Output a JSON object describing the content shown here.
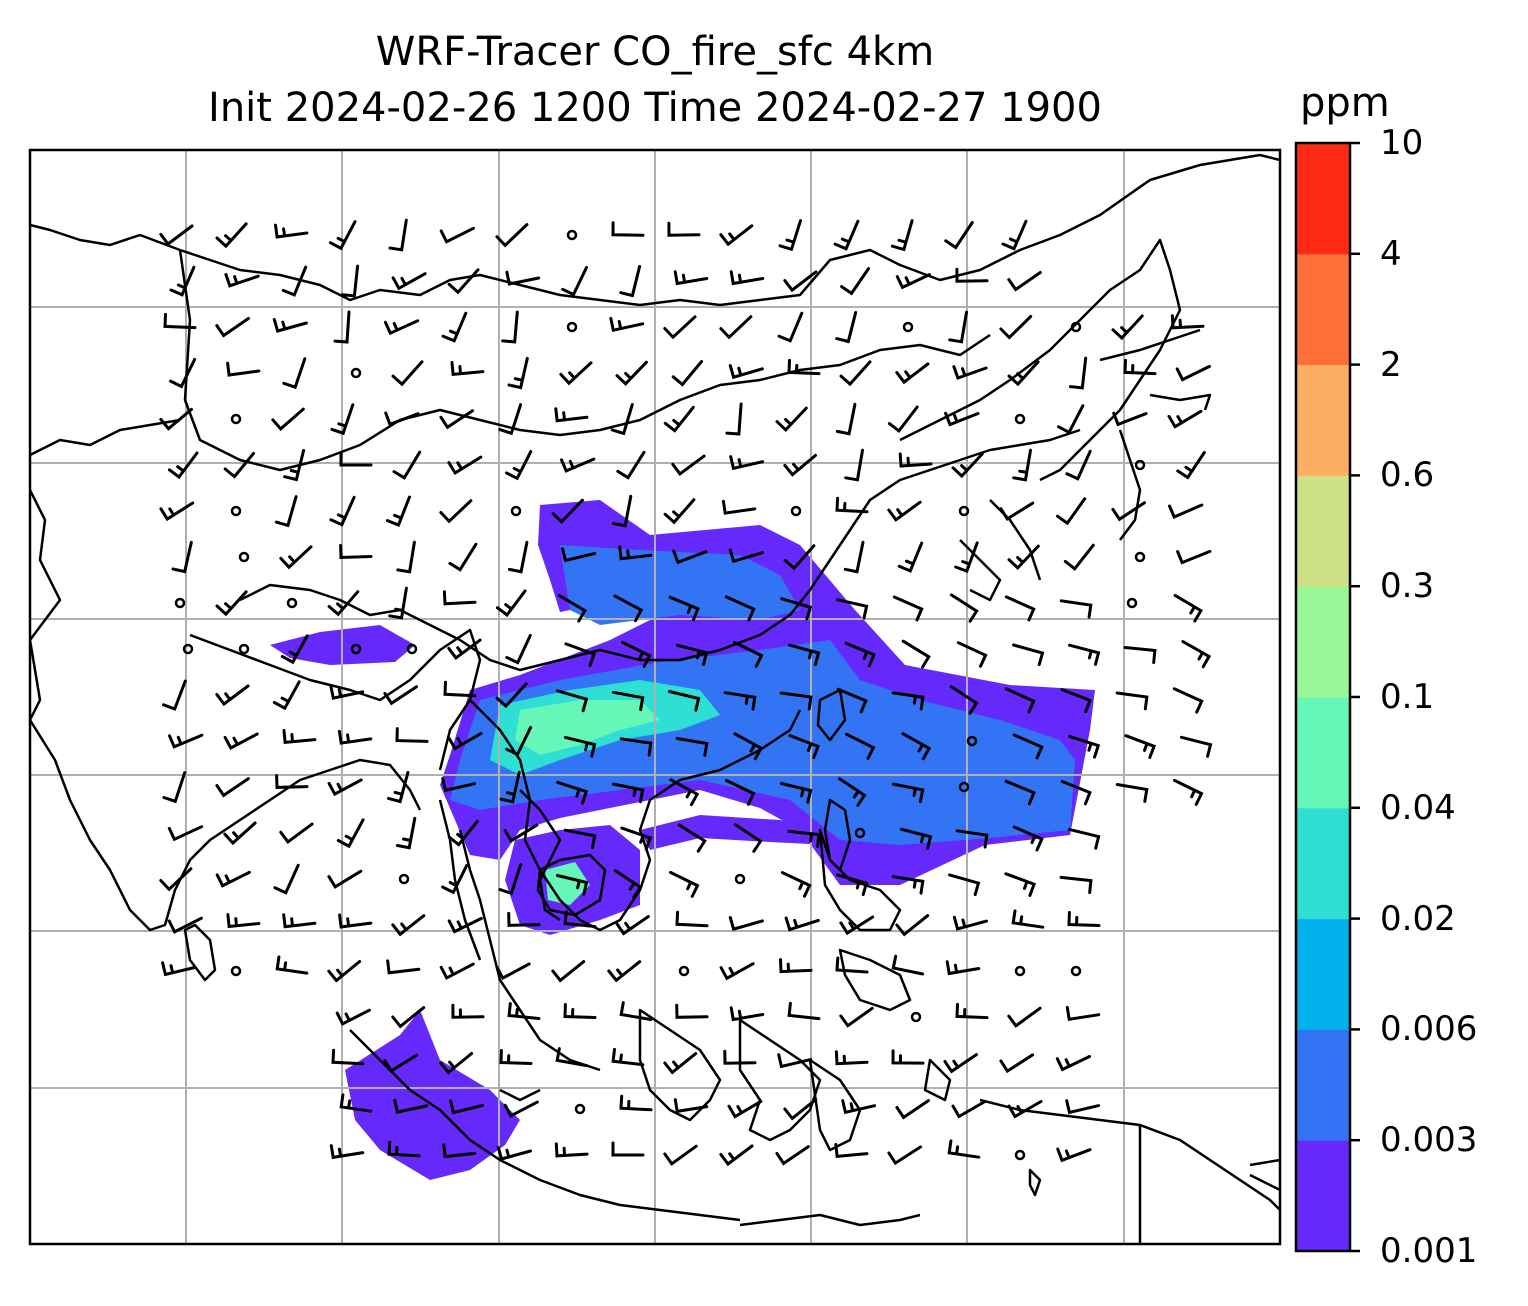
{
  "title": {
    "line1": "WRF-Tracer CO_fire_sfc 4km",
    "line2": "Init 2024-02-26 1200 Time 2024-02-27 1900"
  },
  "colorbar": {
    "unit": "ppm",
    "levels": [
      "0.001",
      "0.003",
      "0.006",
      "0.02",
      "0.04",
      "0.1",
      "0.3",
      "0.6",
      "2",
      "4",
      "10"
    ],
    "colors": [
      "#6529fb",
      "#3374f5",
      "#00b1ee",
      "#2fdfd3",
      "#65f6b8",
      "#99f797",
      "#cfe186",
      "#fcaf62",
      "#ff7039",
      "#ff2a16"
    ]
  },
  "map": {
    "field": "CO_fire_sfc",
    "gridlines": true,
    "wind_barbs": true,
    "coastlines": true
  }
}
